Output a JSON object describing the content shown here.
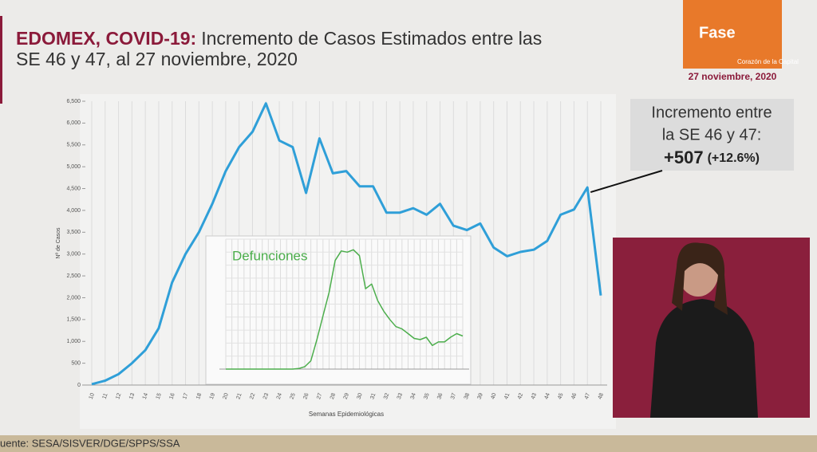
{
  "header": {
    "title_bold": "EDOMEX, COVID-19:",
    "title_rest": "Incremento de Casos Estimados entre las",
    "title_line2": "SE 46 y 47, al 27 noviembre, 2020"
  },
  "logo": {
    "text": "Fase",
    "subtitle": "Corazón de la Capital"
  },
  "date": "27 noviembre, 2020",
  "source": "uente: SESA/SISVER/DGE/SPPS/SSA",
  "chart_data": [
    {
      "type": "line",
      "ylabel": "Nº de Casos",
      "xlabel": "Semanas Epidemiológicas",
      "color": "#2f9fd8",
      "grid": "x",
      "categories": [
        "10",
        "11",
        "12",
        "13",
        "14",
        "15",
        "16",
        "17",
        "18",
        "19",
        "20",
        "21",
        "22",
        "23",
        "24",
        "25",
        "26",
        "27",
        "28",
        "29",
        "30",
        "31",
        "32",
        "33",
        "34",
        "35",
        "36",
        "37",
        "38",
        "39",
        "40",
        "41",
        "42",
        "43",
        "44",
        "45",
        "46",
        "47",
        "48"
      ],
      "values": [
        20,
        100,
        250,
        500,
        800,
        1300,
        2350,
        3000,
        3500,
        4150,
        4900,
        5450,
        5800,
        6450,
        5600,
        5450,
        4400,
        5650,
        4850,
        4900,
        4550,
        4550,
        3950,
        3950,
        4050,
        3900,
        4150,
        3650,
        3550,
        3700,
        3150,
        2950,
        3050,
        3100,
        3300,
        3900,
        4020,
        4527,
        2050
      ],
      "ylim": [
        0,
        6500
      ],
      "yticks": [
        0,
        500,
        {
          "value": 1000,
          "label": "1,000"
        },
        {
          "value": 1500,
          "label": "1,500"
        },
        {
          "value": 2000,
          "label": "2,000"
        },
        {
          "value": 2500,
          "label": "2,500"
        },
        {
          "value": 3000,
          "label": "3,000"
        },
        {
          "value": 3500,
          "label": "3,500"
        },
        {
          "value": 4000,
          "label": "4,000"
        },
        {
          "value": 4500,
          "label": "4,500"
        },
        {
          "value": 5000,
          "label": "5,000"
        },
        {
          "value": 5500,
          "label": "5,500"
        },
        {
          "value": 6000,
          "label": "6,000"
        },
        {
          "value": 6500,
          "label": "6,500"
        }
      ],
      "annotations": {
        "line1": "Incremento entre",
        "line2": "la SE 46 y 47:",
        "value": "+507",
        "pct": "(+12.6%)"
      }
    },
    {
      "type": "line",
      "title": "Defunciones",
      "color": "#4cae4c",
      "ylim": [
        0,
        1100
      ],
      "categories": [
        null,
        null,
        null,
        null,
        null,
        null,
        null,
        null,
        null,
        null,
        null,
        null,
        null,
        null,
        null,
        null,
        null,
        null,
        null,
        null,
        null,
        null,
        null,
        null,
        null,
        null,
        null,
        null,
        null,
        null,
        null,
        null,
        null,
        null,
        null,
        null,
        null,
        null,
        null,
        null
      ],
      "values": [
        0,
        0,
        0,
        0,
        0,
        0,
        0,
        0,
        0,
        0,
        0,
        0,
        5,
        20,
        70,
        250,
        450,
        650,
        920,
        1000,
        990,
        1010,
        960,
        680,
        720,
        580,
        490,
        420,
        360,
        340,
        300,
        260,
        250,
        270,
        200,
        230,
        230,
        270,
        300,
        280
      ]
    }
  ]
}
